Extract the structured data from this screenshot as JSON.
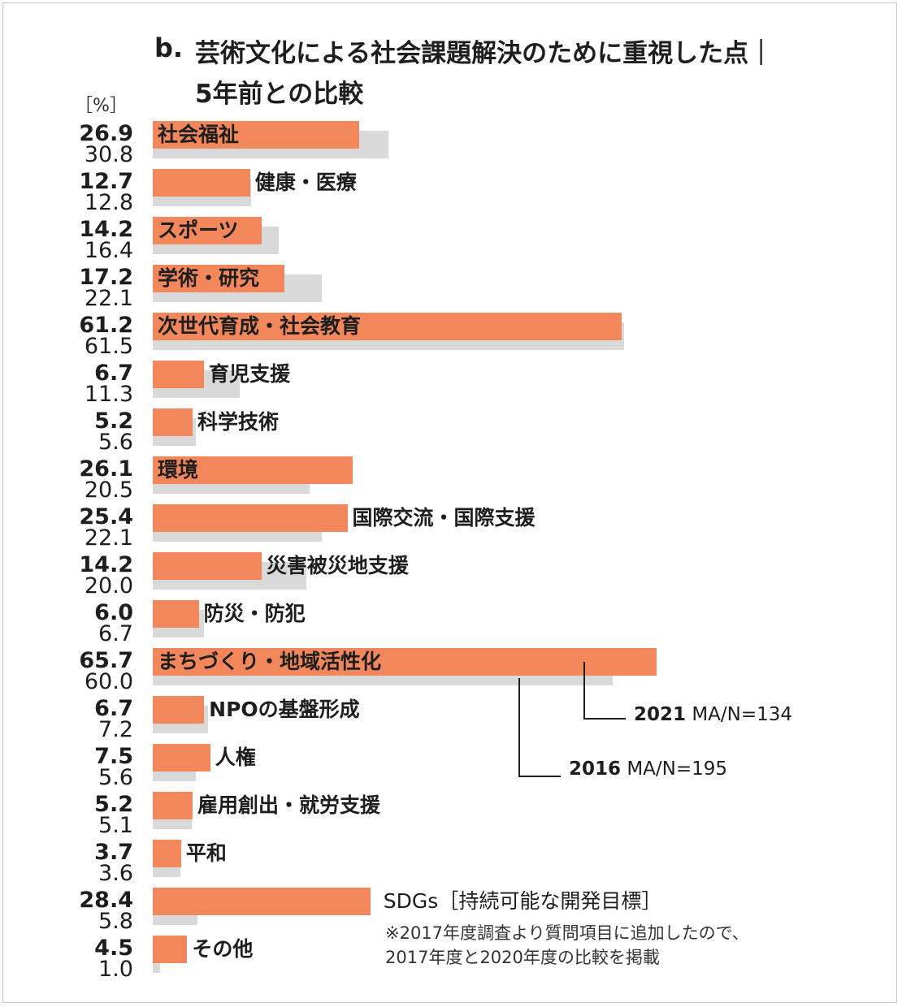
{
  "title": {
    "prefix": "b.",
    "line1": "芸術文化による社会課題解決のために重視した点｜",
    "line2": "5年前との比較"
  },
  "colors": {
    "series_2021": "#f2875b",
    "series_2016": "#d9d9d9"
  },
  "legend": {
    "s2021_year": "2021",
    "s2021_n": "MA/N=134",
    "s2016_year": "2016",
    "s2016_n": "MA/N=195"
  },
  "note": {
    "line1": "※2017年度調査より質問項目に追加したので、",
    "line2": "2017年度と2020年度の比較を掲載"
  },
  "chart_data": {
    "type": "bar",
    "orientation": "horizontal",
    "unit_label": "［%］",
    "xlim": [
      0,
      70
    ],
    "categories": [
      "社会福祉",
      "健康・医療",
      "スポーツ",
      "学術・研究",
      "次世代育成・社会教育",
      "育児支援",
      "科学技術",
      "環境",
      "国際交流・国際支援",
      "災害被災地支援",
      "防災・防犯",
      "まちづくり・地域活性化",
      "NPOの基盤形成",
      "人権",
      "雇用創出・就労支援",
      "平和",
      "SDGs［持続可能な開発目標］",
      "その他"
    ],
    "series": [
      {
        "name": "2021",
        "values": [
          26.9,
          12.7,
          14.2,
          17.2,
          61.2,
          6.7,
          5.2,
          26.1,
          25.4,
          14.2,
          6.0,
          65.7,
          6.7,
          7.5,
          5.2,
          3.7,
          28.4,
          4.5
        ],
        "labels": [
          "26.9",
          "12.7",
          "14.2",
          "17.2",
          "61.2",
          "6.7",
          "5.2",
          "26.1",
          "25.4",
          "14.2",
          "6.0",
          "65.7",
          "6.7",
          "7.5",
          "5.2",
          "3.7",
          "28.4",
          "4.5"
        ]
      },
      {
        "name": "2016",
        "values": [
          30.8,
          12.8,
          16.4,
          22.1,
          61.5,
          11.3,
          5.6,
          20.5,
          22.1,
          20.0,
          6.7,
          60.0,
          7.2,
          5.6,
          5.1,
          3.6,
          5.8,
          1.0
        ],
        "labels": [
          "30.8",
          "12.8",
          "16.4",
          "22.1",
          "61.5",
          "11.3",
          "5.6",
          "20.5",
          "22.1",
          "20.0",
          "6.7",
          "60.0",
          "7.2",
          "5.6",
          "5.1",
          "3.6",
          "5.8",
          "1.0"
        ]
      }
    ]
  }
}
